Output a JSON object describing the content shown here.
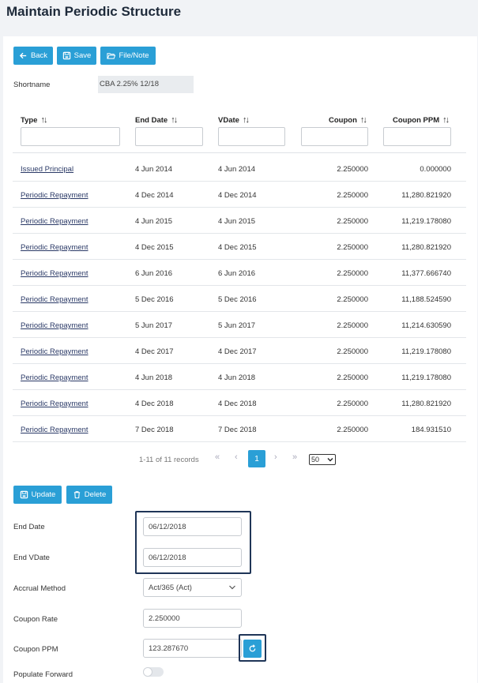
{
  "page": {
    "title": "Maintain Periodic Structure"
  },
  "toolbar": {
    "back": "Back",
    "save": "Save",
    "file_note": "File/Note"
  },
  "shortname": {
    "label": "Shortname",
    "value": "CBA 2.25% 12/18"
  },
  "table": {
    "headers": {
      "type": "Type",
      "end_date": "End Date",
      "vdate": "VDate",
      "coupon": "Coupon",
      "coupon_ppm": "Coupon PPM",
      "sort_glyph": "↑↓"
    },
    "rows": [
      {
        "type": "Issued Principal",
        "end_date": "4 Jun 2014",
        "vdate": "4 Jun 2014",
        "coupon": "2.250000",
        "coupon_ppm": "0.000000"
      },
      {
        "type": "Periodic Repayment",
        "end_date": "4 Dec 2014",
        "vdate": "4 Dec 2014",
        "coupon": "2.250000",
        "coupon_ppm": "11,280.821920"
      },
      {
        "type": "Periodic Repayment",
        "end_date": "4 Jun 2015",
        "vdate": "4 Jun 2015",
        "coupon": "2.250000",
        "coupon_ppm": "11,219.178080"
      },
      {
        "type": "Periodic Repayment",
        "end_date": "4 Dec 2015",
        "vdate": "4 Dec 2015",
        "coupon": "2.250000",
        "coupon_ppm": "11,280.821920"
      },
      {
        "type": "Periodic Repayment",
        "end_date": "6 Jun 2016",
        "vdate": "6 Jun 2016",
        "coupon": "2.250000",
        "coupon_ppm": "11,377.666740"
      },
      {
        "type": "Periodic Repayment",
        "end_date": "5 Dec 2016",
        "vdate": "5 Dec 2016",
        "coupon": "2.250000",
        "coupon_ppm": "11,188.524590"
      },
      {
        "type": "Periodic Repayment",
        "end_date": "5 Jun 2017",
        "vdate": "5 Jun 2017",
        "coupon": "2.250000",
        "coupon_ppm": "11,214.630590"
      },
      {
        "type": "Periodic Repayment",
        "end_date": "4 Dec 2017",
        "vdate": "4 Dec 2017",
        "coupon": "2.250000",
        "coupon_ppm": "11,219.178080"
      },
      {
        "type": "Periodic Repayment",
        "end_date": "4 Jun 2018",
        "vdate": "4 Jun 2018",
        "coupon": "2.250000",
        "coupon_ppm": "11,219.178080"
      },
      {
        "type": "Periodic Repayment",
        "end_date": "4 Dec 2018",
        "vdate": "4 Dec 2018",
        "coupon": "2.250000",
        "coupon_ppm": "11,280.821920"
      },
      {
        "type": "Periodic Repayment",
        "end_date": "7 Dec 2018",
        "vdate": "7 Dec 2018",
        "coupon": "2.250000",
        "coupon_ppm": "184.931510"
      }
    ]
  },
  "pagination": {
    "info": "1-11 of 11 records",
    "first": "«",
    "prev": "‹",
    "current": "1",
    "next": "›",
    "last": "»",
    "page_size": "50"
  },
  "actions": {
    "update": "Update",
    "delete": "Delete"
  },
  "form": {
    "end_date": {
      "label": "End Date",
      "value": "06/12/2018"
    },
    "end_vdate": {
      "label": "End VDate",
      "value": "06/12/2018"
    },
    "accrual_method": {
      "label": "Accrual Method",
      "value": "Act/365 (Act)"
    },
    "coupon_rate": {
      "label": "Coupon Rate",
      "value": "2.250000"
    },
    "coupon_ppm": {
      "label": "Coupon PPM",
      "value": "123.287670"
    },
    "populate_forward": {
      "label": "Populate Forward",
      "enabled": false
    }
  },
  "colors": {
    "accent": "#2a9fd6",
    "highlight_border": "#1f3557",
    "link": "#2b3a67"
  },
  "icons": {
    "back": "arrow-left-icon",
    "save": "floppy-disk-icon",
    "file_note": "folder-open-icon",
    "update": "floppy-disk-icon",
    "delete": "trash-icon",
    "refresh": "refresh-icon",
    "dropdown": "chevron-down-icon"
  }
}
